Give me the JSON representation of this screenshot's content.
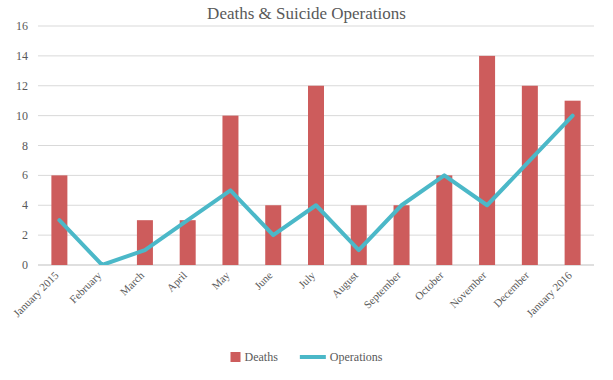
{
  "chart_data": {
    "type": "bar",
    "title": "Deaths & Suicide Operations",
    "categories": [
      "January 2015",
      "February",
      "March",
      "April",
      "May",
      "June",
      "July",
      "August",
      "September",
      "October",
      "November",
      "December",
      "January 2016"
    ],
    "series": [
      {
        "name": "Deaths",
        "type": "bar",
        "color": "#cd5c5c",
        "values": [
          6,
          0,
          3,
          3,
          10,
          4,
          12,
          4,
          4,
          6,
          14,
          12,
          11
        ]
      },
      {
        "name": "Operations",
        "type": "line",
        "color": "#4bb8c8",
        "values": [
          3,
          0,
          1,
          3,
          5,
          2,
          4,
          1,
          4,
          6,
          4,
          7,
          10
        ]
      }
    ],
    "ylim": [
      0,
      16
    ],
    "yticks": [
      0,
      2,
      4,
      6,
      8,
      10,
      12,
      14,
      16
    ],
    "grid": true,
    "legend": "bottom"
  }
}
